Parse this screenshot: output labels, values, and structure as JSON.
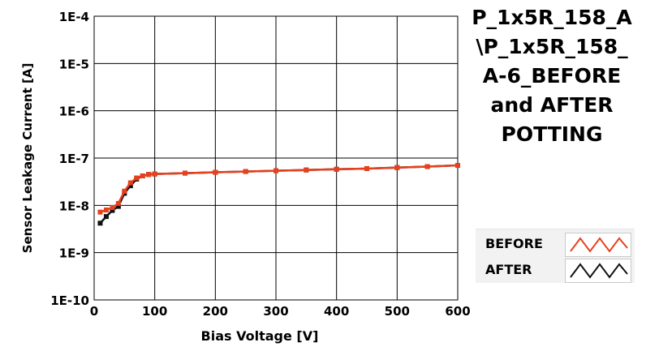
{
  "chart_data": {
    "type": "line",
    "title": "P_1x5R_158_A\n\\P_1x5R_158_\nA-6_BEFORE\nand AFTER\nPOTTING",
    "xlabel": "Bias Voltage [V]",
    "ylabel": "Sensor Leakage Current [A]",
    "xlim": [
      0,
      600
    ],
    "ylim": [
      1e-10,
      0.0001
    ],
    "y_scale": "log",
    "x_ticks": [
      "0",
      "100",
      "200",
      "300",
      "400",
      "500",
      "600"
    ],
    "y_ticks": [
      "1E-4",
      "1E-5",
      "1E-6",
      "1E-7",
      "1E-8",
      "1E-9",
      "1E-10"
    ],
    "grid": true,
    "legend_position": "bottom-right",
    "series": [
      {
        "name": "BEFORE",
        "color": "#e8401c",
        "x": [
          10,
          20,
          30,
          40,
          50,
          60,
          70,
          80,
          90,
          100,
          150,
          200,
          250,
          300,
          350,
          400,
          450,
          500,
          550,
          600
        ],
        "y": [
          7.2e-09,
          8e-09,
          9e-09,
          1.1e-08,
          2e-08,
          3e-08,
          3.8e-08,
          4.2e-08,
          4.5e-08,
          4.6e-08,
          4.8e-08,
          5e-08,
          5.2e-08,
          5.4e-08,
          5.6e-08,
          5.8e-08,
          6e-08,
          6.3e-08,
          6.6e-08,
          7e-08
        ]
      },
      {
        "name": "AFTER",
        "color": "#111111",
        "x": [
          10,
          20,
          30,
          40,
          50,
          60,
          70,
          80,
          90,
          100,
          150,
          200,
          250,
          300,
          350,
          400,
          450,
          500,
          550,
          600
        ],
        "y": [
          4.2e-09,
          5.8e-09,
          7.8e-09,
          9.5e-09,
          1.8e-08,
          2.6e-08,
          3.6e-08,
          4.2e-08,
          4.5e-08,
          4.6e-08,
          4.8e-08,
          5e-08,
          5.2e-08,
          5.4e-08,
          5.6e-08,
          5.8e-08,
          6e-08,
          6.3e-08,
          6.6e-08,
          7e-08
        ]
      }
    ]
  },
  "legend": {
    "before_label": "BEFORE",
    "after_label": "AFTER"
  }
}
